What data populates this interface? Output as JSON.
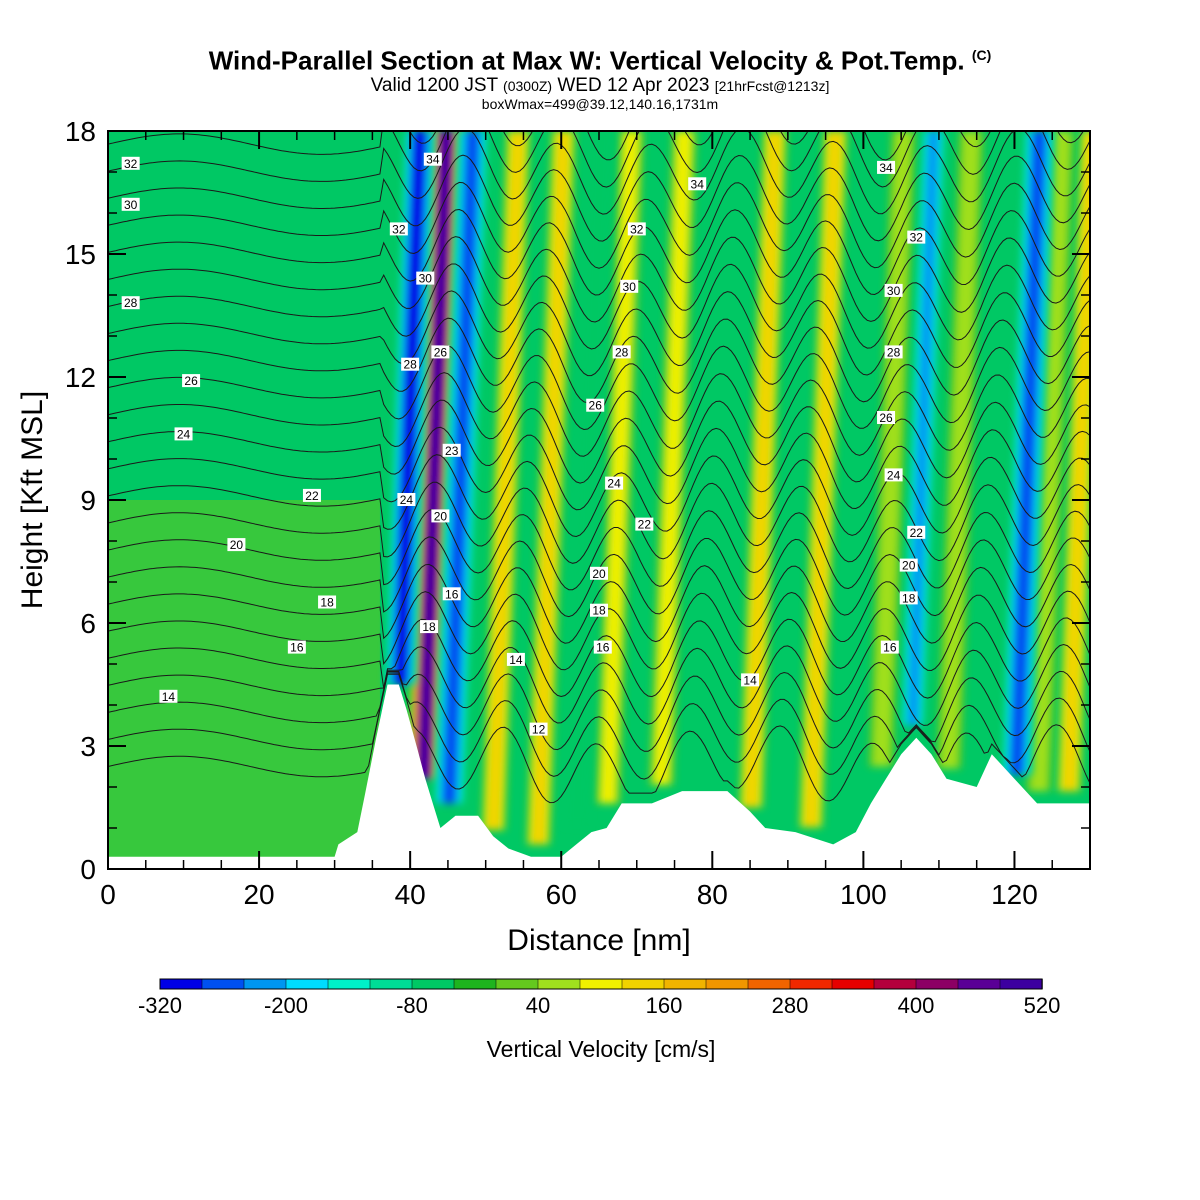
{
  "title": {
    "main": "Wind-Parallel Section at Max W: Vertical Velocity & Pot.Temp.",
    "main_tag": "(C)",
    "valid": "Valid 1200 JST",
    "valid_z": "(0300Z)",
    "valid_date": "WED 12 Apr 2023",
    "valid_fcst": "[21hrFcst@1213z]",
    "box": "boxWmax=499@39.12,140.16,1731m"
  },
  "chart_data": {
    "type": "heatmap",
    "xlabel": "Distance [nm]",
    "ylabel": "Height [Kft MSL]",
    "xlim": [
      0,
      130
    ],
    "ylim": [
      0,
      18
    ],
    "xticks": [
      "0",
      "20",
      "40",
      "60",
      "80",
      "100",
      "120"
    ],
    "yticks": [
      "0",
      "3",
      "6",
      "9",
      "12",
      "15",
      "18"
    ],
    "colorbar": {
      "title": "Vertical Velocity [cm/s]",
      "labels": [
        "-320",
        "-200",
        "-80",
        "40",
        "160",
        "280",
        "400",
        "520"
      ],
      "min": -320,
      "max": 520,
      "step": 40,
      "colors": [
        "#0000e6",
        "#0050f0",
        "#0096f0",
        "#00dcff",
        "#00f0c8",
        "#00dc96",
        "#00c864",
        "#1eb41e",
        "#64c81e",
        "#a0e01e",
        "#f0f000",
        "#f0d200",
        "#f0b400",
        "#f09600",
        "#f06400",
        "#f02800",
        "#e60000",
        "#b4003c",
        "#8c0064",
        "#5a0096",
        "#3c00a0"
      ]
    },
    "updraft_bands_nm": [
      {
        "x": 42.5,
        "w_cm_s": 499
      },
      {
        "x": 52,
        "w_cm_s": 140
      },
      {
        "x": 58,
        "w_cm_s": 120
      },
      {
        "x": 67,
        "w_cm_s": 110
      },
      {
        "x": 74,
        "w_cm_s": 90
      },
      {
        "x": 86,
        "w_cm_s": 140
      },
      {
        "x": 94,
        "w_cm_s": 130
      },
      {
        "x": 103,
        "w_cm_s": 60
      },
      {
        "x": 112,
        "w_cm_s": 70
      },
      {
        "x": 124,
        "w_cm_s": 50
      },
      {
        "x": 128,
        "w_cm_s": 140
      }
    ],
    "downdraft_bands_nm": [
      {
        "x": 39,
        "w_cm_s": -320
      },
      {
        "x": 46,
        "w_cm_s": -300
      },
      {
        "x": 63,
        "w_cm_s": -80
      },
      {
        "x": 107,
        "w_cm_s": -240
      },
      {
        "x": 121,
        "w_cm_s": -280
      }
    ],
    "theta_contours_C": [
      12,
      14,
      16,
      18,
      20,
      22,
      24,
      26,
      28,
      30,
      32,
      34
    ],
    "contour_labels": [
      {
        "text": "32",
        "x": 3,
        "y": 17.2
      },
      {
        "text": "30",
        "x": 3,
        "y": 16.2
      },
      {
        "text": "28",
        "x": 3,
        "y": 13.8
      },
      {
        "text": "26",
        "x": 11,
        "y": 11.9
      },
      {
        "text": "24",
        "x": 10,
        "y": 10.6
      },
      {
        "text": "22",
        "x": 27,
        "y": 9.1
      },
      {
        "text": "20",
        "x": 17,
        "y": 7.9
      },
      {
        "text": "18",
        "x": 29,
        "y": 6.5
      },
      {
        "text": "16",
        "x": 25,
        "y": 5.4
      },
      {
        "text": "14",
        "x": 8,
        "y": 4.2
      },
      {
        "text": "34",
        "x": 43,
        "y": 17.3
      },
      {
        "text": "32",
        "x": 38.5,
        "y": 15.6
      },
      {
        "text": "30",
        "x": 42,
        "y": 14.4
      },
      {
        "text": "28",
        "x": 40,
        "y": 12.3
      },
      {
        "text": "26",
        "x": 44,
        "y": 12.6
      },
      {
        "text": "24",
        "x": 39.5,
        "y": 9.0
      },
      {
        "text": "23",
        "x": 45.5,
        "y": 10.2
      },
      {
        "text": "20",
        "x": 44,
        "y": 8.6
      },
      {
        "text": "16",
        "x": 45.5,
        "y": 6.7
      },
      {
        "text": "18",
        "x": 42.5,
        "y": 5.9
      },
      {
        "text": "34",
        "x": 78,
        "y": 16.7
      },
      {
        "text": "32",
        "x": 70,
        "y": 15.6
      },
      {
        "text": "30",
        "x": 69,
        "y": 14.2
      },
      {
        "text": "28",
        "x": 68,
        "y": 12.6
      },
      {
        "text": "26",
        "x": 64.5,
        "y": 11.3
      },
      {
        "text": "24",
        "x": 67,
        "y": 9.4
      },
      {
        "text": "22",
        "x": 71,
        "y": 8.4
      },
      {
        "text": "20",
        "x": 65,
        "y": 7.2
      },
      {
        "text": "18",
        "x": 65,
        "y": 6.3
      },
      {
        "text": "16",
        "x": 65.5,
        "y": 5.4
      },
      {
        "text": "14",
        "x": 54,
        "y": 5.1
      },
      {
        "text": "12",
        "x": 57,
        "y": 3.4
      },
      {
        "text": "14",
        "x": 85,
        "y": 4.6
      },
      {
        "text": "34",
        "x": 103,
        "y": 17.1
      },
      {
        "text": "32",
        "x": 107,
        "y": 15.4
      },
      {
        "text": "30",
        "x": 104,
        "y": 14.1
      },
      {
        "text": "28",
        "x": 104,
        "y": 12.6
      },
      {
        "text": "26",
        "x": 103,
        "y": 11.0
      },
      {
        "text": "24",
        "x": 104,
        "y": 9.6
      },
      {
        "text": "22",
        "x": 107,
        "y": 8.2
      },
      {
        "text": "20",
        "x": 106,
        "y": 7.4
      },
      {
        "text": "18",
        "x": 106,
        "y": 6.6
      },
      {
        "text": "16",
        "x": 103.5,
        "y": 5.4
      }
    ],
    "terrain_profile_kft": [
      {
        "x": 0,
        "h": 0.3
      },
      {
        "x": 30,
        "h": 0.3
      },
      {
        "x": 30.5,
        "h": 0.6
      },
      {
        "x": 33,
        "h": 0.9
      },
      {
        "x": 34,
        "h": 1.8
      },
      {
        "x": 35.5,
        "h": 3.2
      },
      {
        "x": 37,
        "h": 4.5
      },
      {
        "x": 38.5,
        "h": 4.5
      },
      {
        "x": 39.5,
        "h": 3.9
      },
      {
        "x": 41,
        "h": 2.9
      },
      {
        "x": 42,
        "h": 2.2
      },
      {
        "x": 43,
        "h": 1.6
      },
      {
        "x": 44,
        "h": 1.0
      },
      {
        "x": 46,
        "h": 1.3
      },
      {
        "x": 49,
        "h": 1.3
      },
      {
        "x": 51,
        "h": 0.8
      },
      {
        "x": 53,
        "h": 0.5
      },
      {
        "x": 56,
        "h": 0.3
      },
      {
        "x": 60,
        "h": 0.3
      },
      {
        "x": 62,
        "h": 0.6
      },
      {
        "x": 64,
        "h": 0.9
      },
      {
        "x": 66,
        "h": 1.0
      },
      {
        "x": 68,
        "h": 1.6
      },
      {
        "x": 72,
        "h": 1.6
      },
      {
        "x": 76,
        "h": 1.9
      },
      {
        "x": 82,
        "h": 1.9
      },
      {
        "x": 85,
        "h": 1.4
      },
      {
        "x": 87,
        "h": 1.0
      },
      {
        "x": 91,
        "h": 0.9
      },
      {
        "x": 96,
        "h": 0.6
      },
      {
        "x": 99,
        "h": 0.9
      },
      {
        "x": 101,
        "h": 1.6
      },
      {
        "x": 103,
        "h": 2.2
      },
      {
        "x": 105,
        "h": 2.8
      },
      {
        "x": 107,
        "h": 3.2
      },
      {
        "x": 109,
        "h": 2.8
      },
      {
        "x": 111,
        "h": 2.2
      },
      {
        "x": 115,
        "h": 2.0
      },
      {
        "x": 117,
        "h": 2.8
      },
      {
        "x": 119,
        "h": 2.4
      },
      {
        "x": 121,
        "h": 2.0
      },
      {
        "x": 123,
        "h": 1.6
      },
      {
        "x": 127,
        "h": 1.6
      },
      {
        "x": 130,
        "h": 1.6
      }
    ]
  }
}
